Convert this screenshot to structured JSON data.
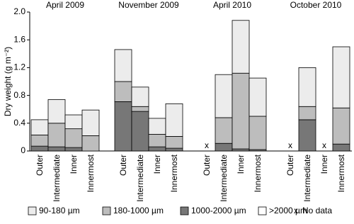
{
  "chart_data": {
    "type": "stacked_bar",
    "y_label": "Dry weight (g m⁻²)",
    "groups": [
      "April 2009",
      "November 2009",
      "April 2010",
      "October 2010"
    ],
    "categories": [
      "Outer",
      "Intermediate",
      "Inner",
      "Innermost",
      "Outer",
      "Intermediate",
      "Inner",
      "Innermost",
      "Outer",
      "Intermediate",
      "Inner",
      "Innermost",
      "Outer",
      "Intermediate",
      "Inner",
      "Innermost"
    ],
    "no_data_marker": "x",
    "no_data_label": "No data",
    "series": [
      {
        "name": ">2000 µm",
        "color": "#ffffff",
        "values": [
          0,
          0,
          0,
          0,
          0,
          0,
          0,
          0,
          null,
          0,
          0,
          0,
          null,
          0,
          null,
          0
        ]
      },
      {
        "name": "1000-2000 µm",
        "color": "#777777",
        "values": [
          0.07,
          0.06,
          0.05,
          0,
          0.71,
          0.57,
          0.06,
          0.04,
          null,
          0.11,
          0.03,
          0.02,
          null,
          0.45,
          null,
          0.1
        ]
      },
      {
        "name": "180-1000 µm",
        "color": "#bdbdbd",
        "values": [
          0.16,
          0.34,
          0.27,
          0.22,
          0.29,
          0.07,
          0.18,
          0.17,
          null,
          0.37,
          1.09,
          0.48,
          null,
          0.19,
          null,
          0.52
        ]
      },
      {
        "name": "90-180 µm",
        "color": "#ececec",
        "values": [
          0.22,
          0.34,
          0.2,
          0.37,
          0.46,
          0.28,
          0.23,
          0.47,
          null,
          0.62,
          0.76,
          0.55,
          null,
          0.56,
          null,
          0.88
        ]
      }
    ],
    "legend_order": [
      3,
      2,
      1,
      0
    ],
    "ylim": [
      0,
      2
    ],
    "yticks": [
      0,
      0.4,
      0.8,
      1.2,
      1.6,
      {
        "value": 2,
        "label": "2.0"
      }
    ]
  }
}
